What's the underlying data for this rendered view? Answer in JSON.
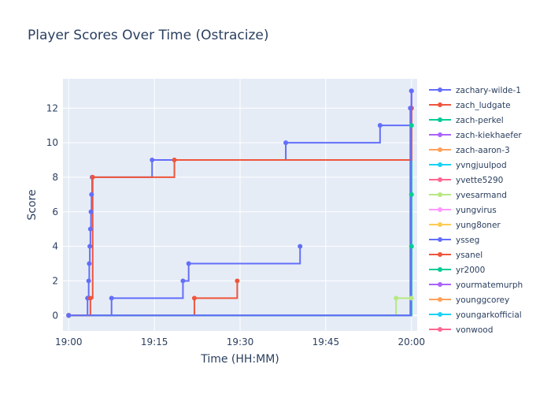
{
  "chart_data": {
    "type": "line",
    "line_shape": "step",
    "title": "Player Scores Over Time (Ostracize)",
    "xlabel": "Time (HH:MM)",
    "ylabel": "Score",
    "x_ticks": [
      "19:00",
      "19:15",
      "19:30",
      "19:45",
      "20:00"
    ],
    "y_ticks": [
      0,
      2,
      4,
      6,
      8,
      10,
      12
    ],
    "xlim": [
      "18:59",
      "20:01"
    ],
    "ylim": [
      -0.9,
      13.7
    ],
    "grid": true,
    "legend_position": "right",
    "series": [
      {
        "name": "zachary-wilde-1",
        "color": "#636efa",
        "points": [
          [
            "19:00",
            0
          ],
          [
            "19:59.8",
            12
          ],
          [
            "20:00",
            13
          ]
        ]
      },
      {
        "name": "zach_ludgate",
        "color": "#ef553b",
        "points": [
          [
            "19:00",
            0
          ],
          [
            "19:03.8",
            1
          ],
          [
            "19:04.2",
            8
          ],
          [
            "19:18.5",
            9
          ],
          [
            "20:00",
            12
          ]
        ]
      },
      {
        "name": "zach-perkel",
        "color": "#00cc96",
        "points": [
          [
            "19:00",
            0
          ],
          [
            "20:00",
            4
          ],
          [
            "20:00",
            7
          ],
          [
            "20:00",
            11
          ]
        ]
      },
      {
        "name": "zach-kiekhaefer",
        "color": "#ab63fa",
        "points": [
          [
            "19:00",
            0
          ],
          [
            "20:00",
            13
          ]
        ]
      },
      {
        "name": "zach-aaron-3",
        "color": "#ffa15a",
        "points": [
          [
            "19:00",
            0
          ]
        ]
      },
      {
        "name": "yvngjuulpod",
        "color": "#19d3f3",
        "points": [
          [
            "19:00",
            0
          ]
        ]
      },
      {
        "name": "yvette5290",
        "color": "#ff6692",
        "points": [
          [
            "19:00",
            0
          ]
        ]
      },
      {
        "name": "yvesarmand",
        "color": "#b6e880",
        "points": [
          [
            "19:00",
            0
          ],
          [
            "19:57.3",
            1
          ],
          [
            "20:00",
            1
          ]
        ]
      },
      {
        "name": "yungvirus",
        "color": "#ff97ff",
        "points": [
          [
            "19:00",
            0
          ]
        ]
      },
      {
        "name": "yung8oner",
        "color": "#fecb52",
        "points": [
          [
            "19:00",
            0
          ]
        ]
      },
      {
        "name": "ysseg",
        "color": "#636efa",
        "points": [
          [
            "19:00",
            0
          ],
          [
            "19:03.3",
            1
          ],
          [
            "19:03.5",
            2
          ],
          [
            "19:03.6",
            3
          ],
          [
            "19:03.7",
            4
          ],
          [
            "19:03.8",
            5
          ],
          [
            "19:03.9",
            6
          ],
          [
            "19:04.0",
            7
          ],
          [
            "19:04.1",
            8
          ],
          [
            "19:14.6",
            9
          ],
          [
            "19:38.0",
            10
          ],
          [
            "19:54.5",
            11
          ],
          [
            "20:00",
            12
          ]
        ]
      },
      {
        "name": "ysanel",
        "color": "#ef553b",
        "points": [
          [
            "19:00",
            0
          ],
          [
            "19:22.0",
            1
          ],
          [
            "19:29.5",
            2
          ]
        ]
      },
      {
        "name": "yr2000",
        "color": "#00cc96",
        "points": [
          [
            "19:00",
            0
          ]
        ]
      },
      {
        "name": "yourmatemurph",
        "color": "#ab63fa",
        "points": [
          [
            "19:00",
            0
          ],
          [
            "20:00",
            13
          ]
        ]
      },
      {
        "name": "younggcorey",
        "color": "#ffa15a",
        "points": [
          [
            "19:00",
            0
          ]
        ]
      },
      {
        "name": "youngarkofficial",
        "color": "#19d3f3",
        "points": [
          [
            "19:00",
            0
          ]
        ]
      },
      {
        "name": "yonwood",
        "color": "#ff6692",
        "points": [
          [
            "19:00",
            0
          ]
        ]
      },
      {
        "name": "",
        "color": "#636efa",
        "points": [
          [
            "19:00",
            0
          ],
          [
            "19:07.5",
            1
          ],
          [
            "19:20.0",
            2
          ],
          [
            "19:21.0",
            3
          ],
          [
            "19:40.5",
            4
          ]
        ]
      }
    ]
  }
}
